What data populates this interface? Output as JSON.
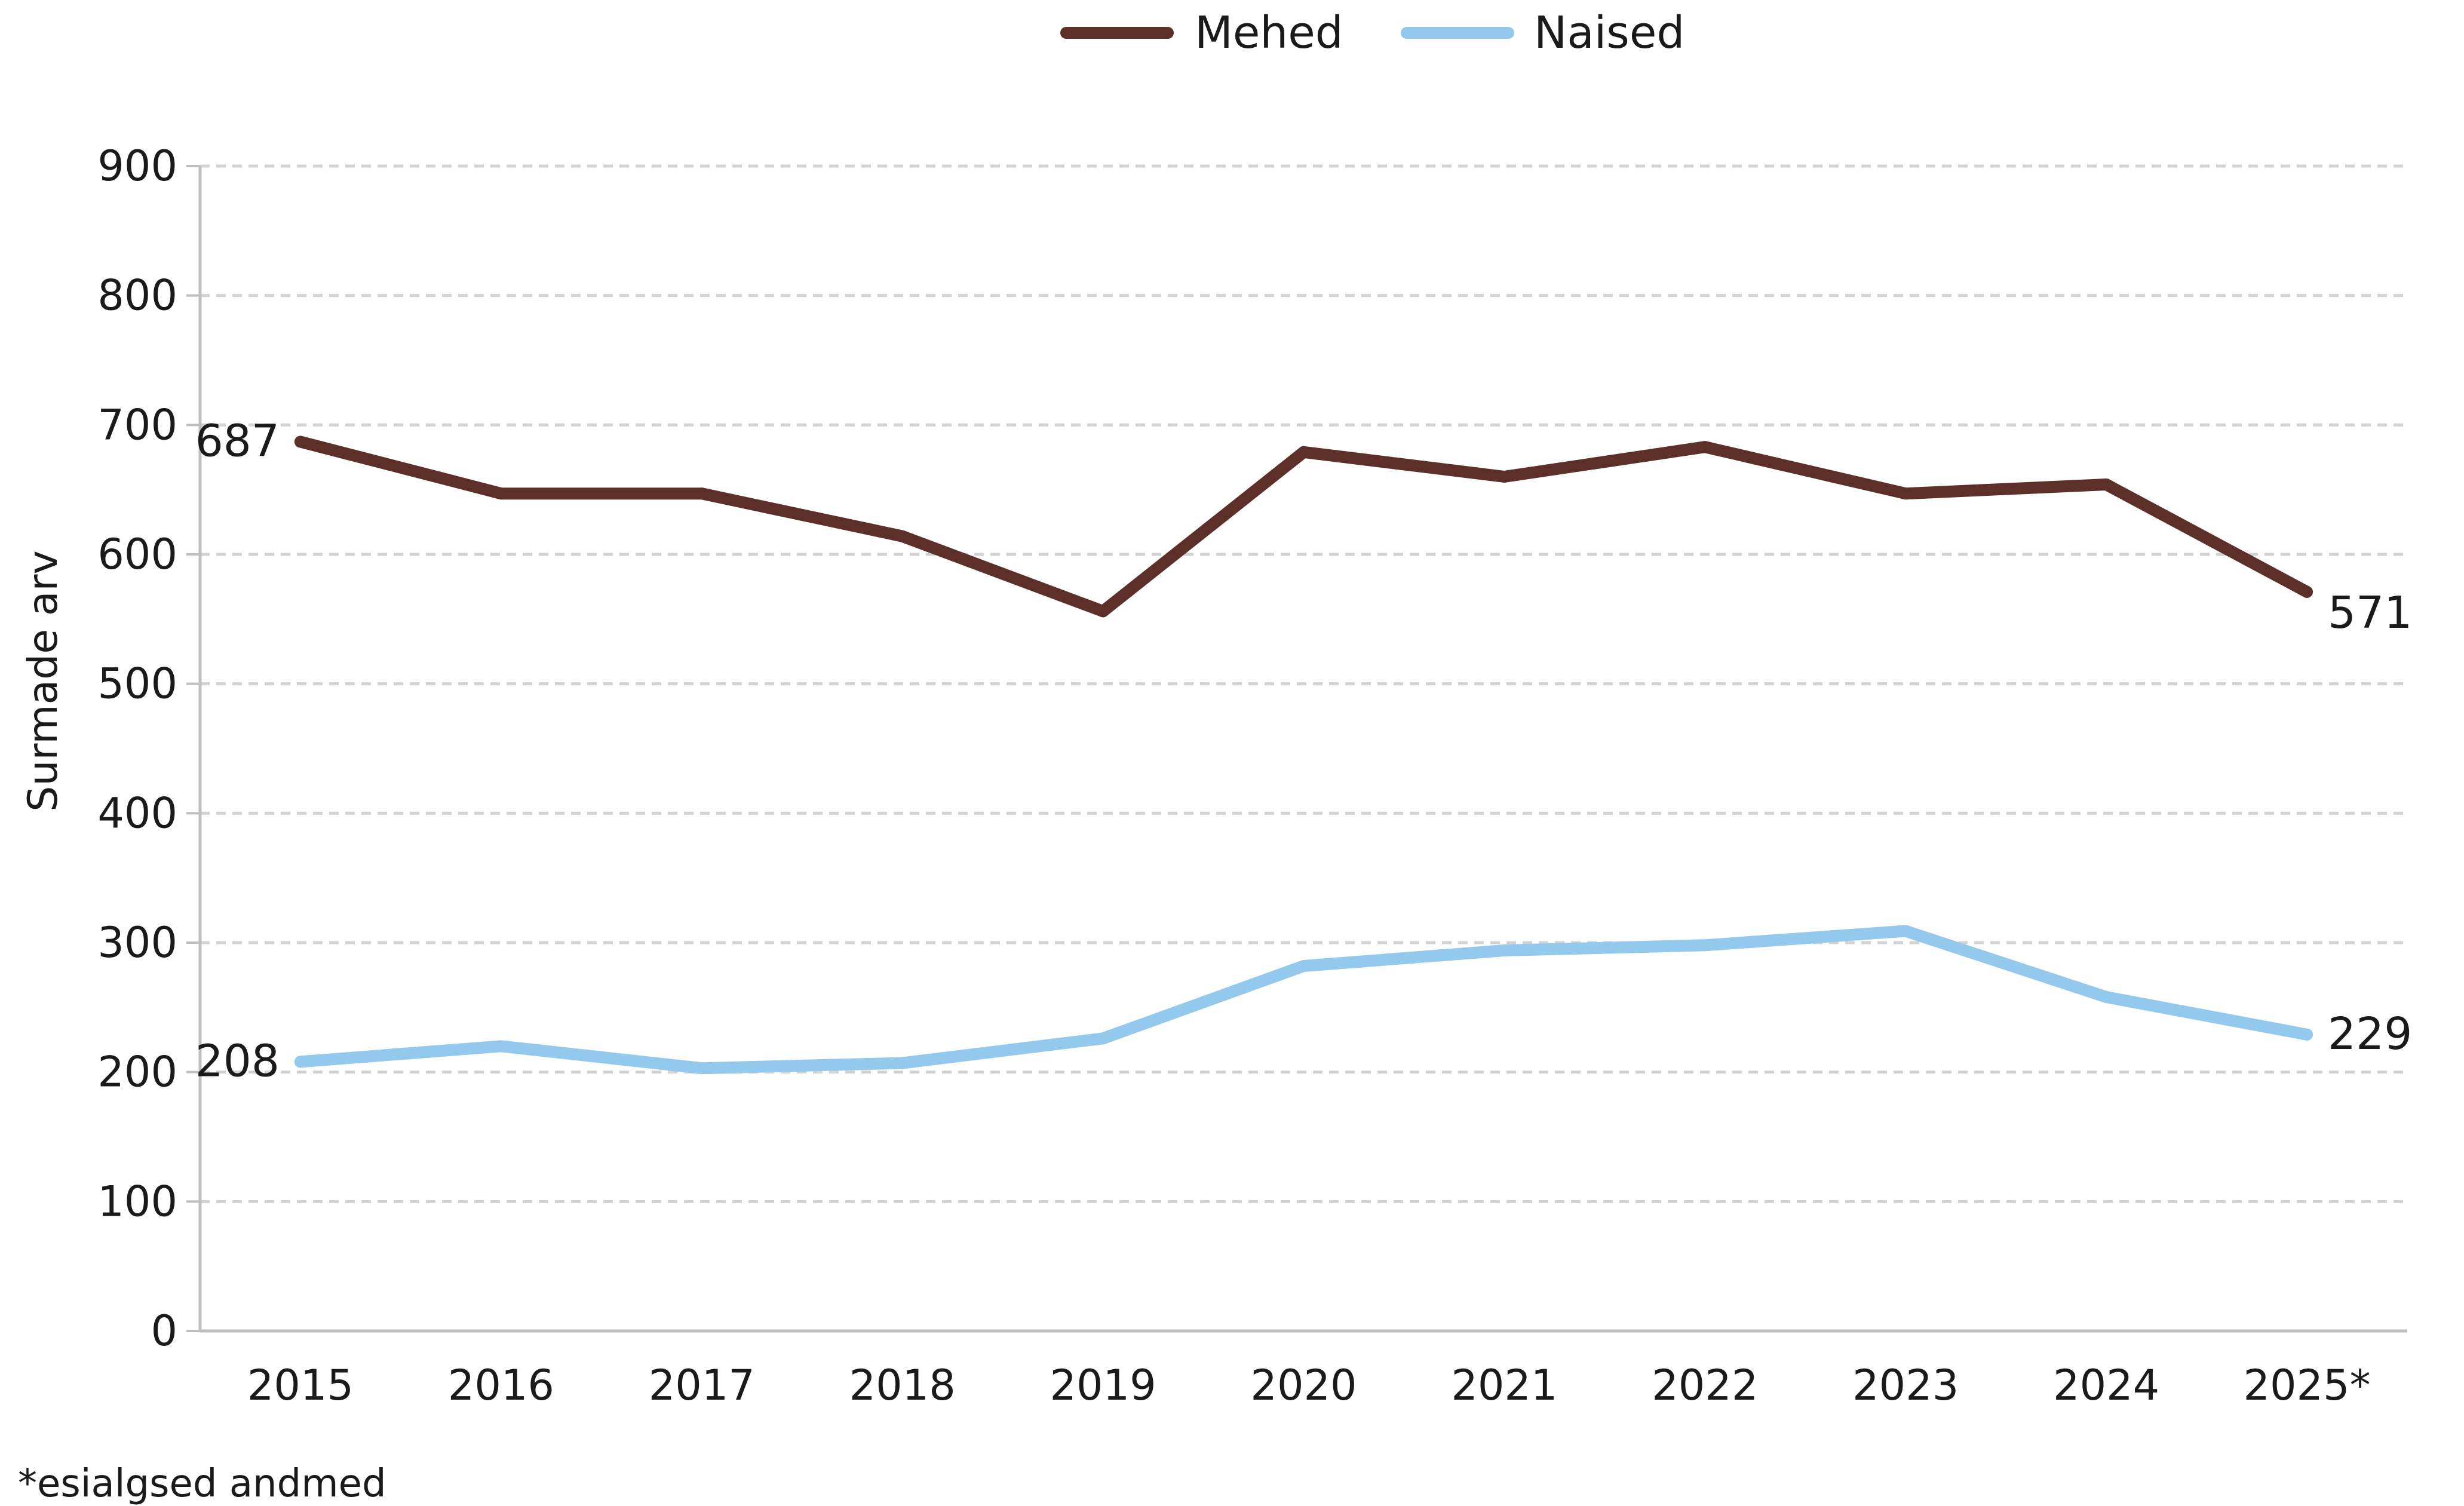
{
  "chart_data": {
    "type": "line",
    "categories": [
      "2015",
      "2016",
      "2017",
      "2018",
      "2019",
      "2020",
      "2021",
      "2022",
      "2023",
      "2024",
      "2025*"
    ],
    "series": [
      {
        "name": "Mehed",
        "color": "#5c3029",
        "values": [
          687,
          647,
          647,
          614,
          556,
          679,
          660,
          683,
          647,
          654,
          571
        ]
      },
      {
        "name": "Naised",
        "color": "#93c9ec",
        "values": [
          208,
          220,
          203,
          207,
          226,
          282,
          294,
          298,
          309,
          258,
          229
        ]
      }
    ],
    "data_labels": [
      {
        "series": 0,
        "index": 0,
        "text": "687"
      },
      {
        "series": 0,
        "index": 10,
        "text": "571"
      },
      {
        "series": 1,
        "index": 0,
        "text": "208"
      },
      {
        "series": 1,
        "index": 10,
        "text": "229"
      }
    ],
    "ylabel": "Surmade arv",
    "xlabel": "",
    "ylim": [
      0,
      900
    ],
    "yticks": [
      0,
      100,
      200,
      300,
      400,
      500,
      600,
      700,
      800,
      900
    ],
    "grid": true,
    "legend_position": "top-center",
    "footnote": "*esialgsed andmed"
  }
}
